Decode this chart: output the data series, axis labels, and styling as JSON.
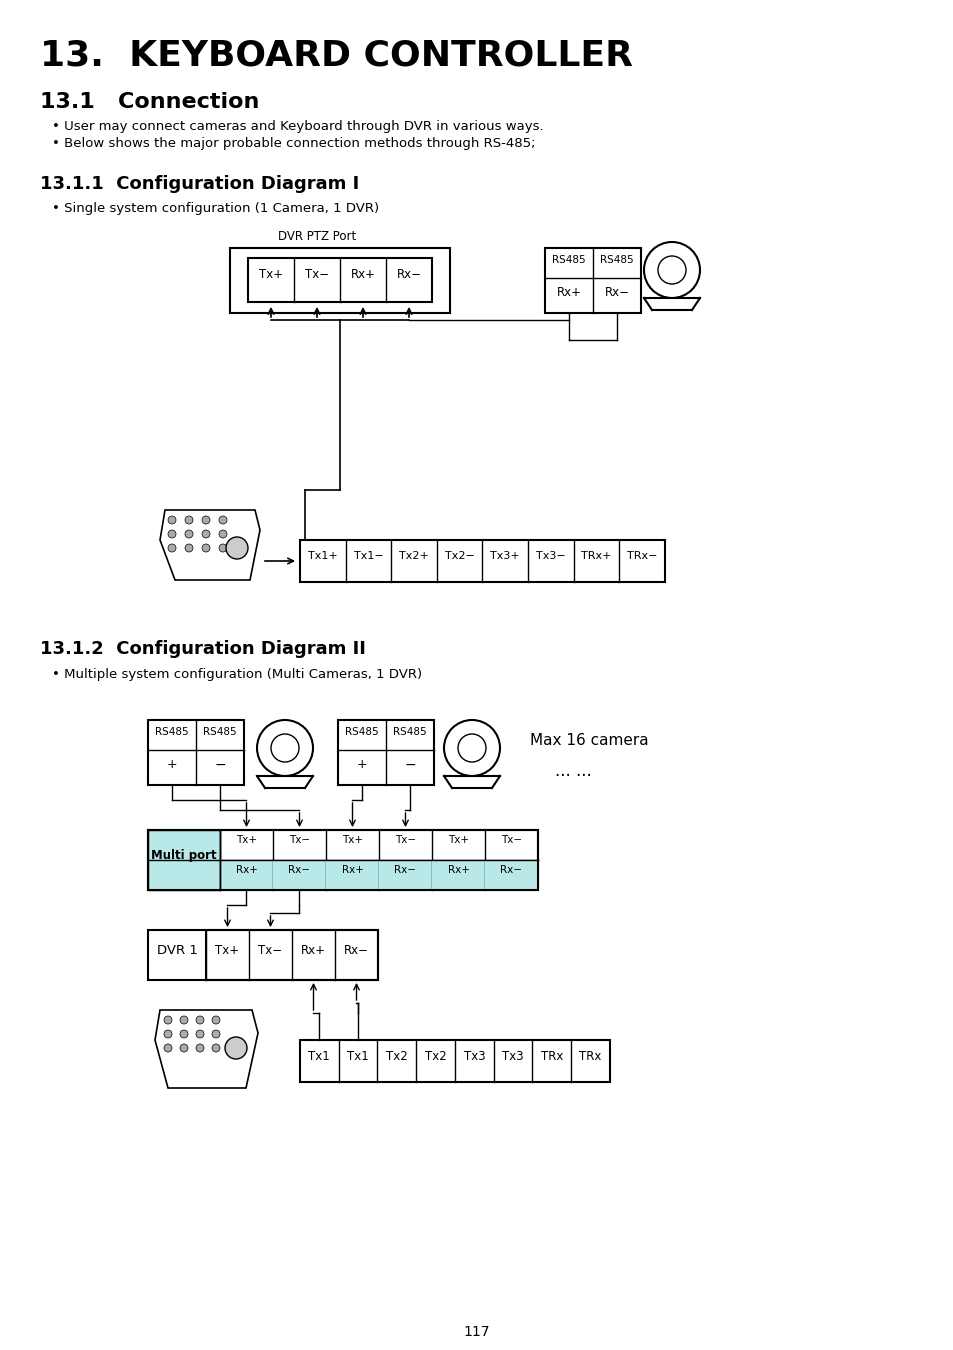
{
  "title": "13.  KEYBOARD CONTROLLER",
  "section_connection": "13.1   Connection",
  "bullet1": "User may connect cameras and Keyboard through DVR in various ways.",
  "bullet2": "Below shows the major probable connection methods through RS-485;",
  "section_diag1": "13.1.1  Configuration Diagram I",
  "bullet_diag1": "Single system configuration (1 Camera, 1 DVR)",
  "section_diag2": "13.1.2  Configuration Diagram II",
  "bullet_diag2": "Multiple system configuration (Multi Cameras, 1 DVR)",
  "page_number": "117",
  "bg_color": "#ffffff",
  "light_blue": "#b8e8e8"
}
